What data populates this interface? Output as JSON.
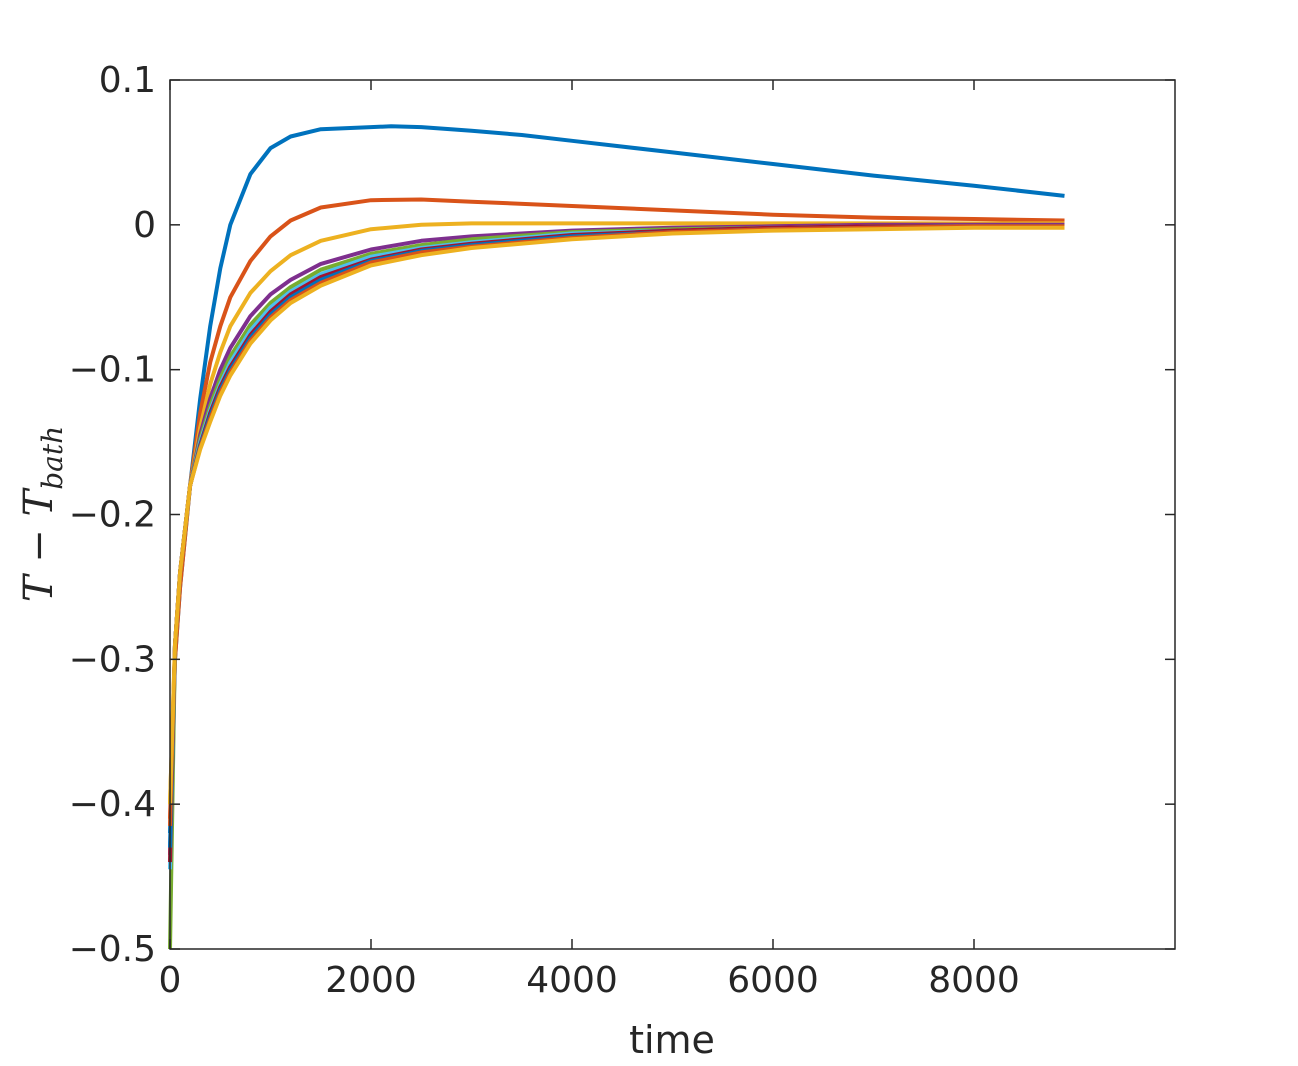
{
  "chart_data": {
    "type": "line",
    "xlabel": "time",
    "ylabel": {
      "main": "T − T",
      "subscript": "bath"
    },
    "xlim": [
      0,
      10000
    ],
    "ylim": [
      -0.5,
      0.1
    ],
    "xticks": [
      0,
      2000,
      4000,
      6000,
      8000
    ],
    "xtick_labels": [
      "0",
      "2000",
      "4000",
      "6000",
      "8000"
    ],
    "yticks": [
      0.1,
      0,
      -0.1,
      -0.2,
      -0.3,
      -0.4,
      -0.5
    ],
    "ytick_labels": [
      "0.1",
      "0",
      "−0.1",
      "−0.2",
      "−0.3",
      "−0.4",
      "−0.5"
    ],
    "grid": false,
    "legend": "none",
    "series": [
      {
        "color": "#0072BD",
        "x": [
          0,
          50,
          100,
          200,
          300,
          400,
          500,
          600,
          800,
          1000,
          1200,
          1500,
          2000,
          2200,
          2500,
          3000,
          3500,
          4000,
          5000,
          6000,
          7000,
          8000,
          8900
        ],
        "y": [
          -0.42,
          -0.3,
          -0.25,
          -0.18,
          -0.12,
          -0.07,
          -0.03,
          0.0,
          0.035,
          0.053,
          0.061,
          0.066,
          0.0675,
          0.068,
          0.0675,
          0.065,
          0.062,
          0.058,
          0.05,
          0.042,
          0.034,
          0.027,
          0.02
        ]
      },
      {
        "color": "#D95319",
        "x": [
          0,
          50,
          100,
          200,
          300,
          400,
          500,
          600,
          800,
          1000,
          1200,
          1500,
          2000,
          2500,
          3000,
          4000,
          5000,
          6000,
          7000,
          8000,
          8900
        ],
        "y": [
          -0.41,
          -0.3,
          -0.25,
          -0.18,
          -0.13,
          -0.095,
          -0.07,
          -0.05,
          -0.025,
          -0.008,
          0.003,
          0.012,
          0.017,
          0.0175,
          0.016,
          0.013,
          0.01,
          0.007,
          0.005,
          0.004,
          0.003
        ]
      },
      {
        "color": "#EDB120",
        "x": [
          0,
          50,
          100,
          200,
          300,
          400,
          500,
          600,
          800,
          1000,
          1200,
          1500,
          2000,
          2500,
          3000,
          4000,
          5000,
          6000,
          7000,
          8000,
          8900
        ],
        "y": [
          -0.4,
          -0.29,
          -0.24,
          -0.18,
          -0.14,
          -0.11,
          -0.088,
          -0.07,
          -0.047,
          -0.032,
          -0.021,
          -0.011,
          -0.003,
          0.0,
          0.001,
          0.001,
          0.001,
          0.001,
          0.001,
          0.001,
          0.001
        ]
      },
      {
        "color": "#7E2F8E",
        "x": [
          0,
          50,
          100,
          200,
          300,
          400,
          500,
          600,
          800,
          1000,
          1200,
          1500,
          2000,
          2500,
          3000,
          4000,
          5000,
          6000,
          7000,
          8000,
          8900
        ],
        "y": [
          -0.435,
          -0.29,
          -0.24,
          -0.18,
          -0.145,
          -0.12,
          -0.1,
          -0.085,
          -0.063,
          -0.048,
          -0.038,
          -0.027,
          -0.017,
          -0.011,
          -0.008,
          -0.004,
          -0.002,
          -0.001,
          0.0,
          0.0,
          0.0
        ]
      },
      {
        "color": "#77AC30",
        "x": [
          0,
          50,
          100,
          200,
          300,
          400,
          500,
          600,
          800,
          1000,
          1200,
          1500,
          2000,
          2500,
          3000,
          4000,
          5000,
          6000,
          7000,
          8000,
          8900
        ],
        "y": [
          -0.5,
          -0.29,
          -0.24,
          -0.18,
          -0.148,
          -0.125,
          -0.106,
          -0.091,
          -0.069,
          -0.054,
          -0.043,
          -0.031,
          -0.02,
          -0.014,
          -0.01,
          -0.005,
          -0.003,
          -0.002,
          -0.001,
          -0.001,
          -0.001
        ]
      },
      {
        "color": "#4DBEEE",
        "x": [
          0,
          50,
          100,
          200,
          300,
          400,
          500,
          600,
          800,
          1000,
          1200,
          1500,
          2000,
          2500,
          3000,
          4000,
          5000,
          6000,
          7000,
          8000,
          8900
        ],
        "y": [
          -0.445,
          -0.29,
          -0.24,
          -0.18,
          -0.15,
          -0.128,
          -0.11,
          -0.095,
          -0.073,
          -0.057,
          -0.046,
          -0.034,
          -0.022,
          -0.016,
          -0.012,
          -0.006,
          -0.004,
          -0.002,
          -0.001,
          -0.001,
          -0.001
        ]
      },
      {
        "color": "#A2142F",
        "x": [
          0,
          50,
          100,
          200,
          300,
          400,
          500,
          600,
          800,
          1000,
          1200,
          1500,
          2000,
          2500,
          3000,
          4000,
          5000,
          6000,
          7000,
          8000,
          8900
        ],
        "y": [
          -0.44,
          -0.29,
          -0.24,
          -0.18,
          -0.152,
          -0.13,
          -0.112,
          -0.098,
          -0.076,
          -0.06,
          -0.048,
          -0.036,
          -0.024,
          -0.017,
          -0.013,
          -0.007,
          -0.004,
          -0.002,
          -0.001,
          -0.001,
          -0.001
        ]
      },
      {
        "color": "#0072BD",
        "x": [
          0,
          50,
          100,
          200,
          300,
          400,
          500,
          600,
          800,
          1000,
          1200,
          1500,
          2000,
          2500,
          3000,
          4000,
          5000,
          6000,
          7000,
          8000,
          8900
        ],
        "y": [
          -0.43,
          -0.29,
          -0.24,
          -0.18,
          -0.153,
          -0.132,
          -0.114,
          -0.1,
          -0.078,
          -0.062,
          -0.05,
          -0.038,
          -0.025,
          -0.018,
          -0.014,
          -0.008,
          -0.005,
          -0.003,
          -0.002,
          -0.001,
          -0.001
        ]
      },
      {
        "color": "#D95319",
        "x": [
          0,
          50,
          100,
          200,
          300,
          400,
          500,
          600,
          800,
          1000,
          1200,
          1500,
          2000,
          2500,
          3000,
          4000,
          5000,
          6000,
          7000,
          8000,
          8900
        ],
        "y": [
          -0.415,
          -0.29,
          -0.24,
          -0.18,
          -0.154,
          -0.134,
          -0.116,
          -0.102,
          -0.08,
          -0.064,
          -0.052,
          -0.04,
          -0.026,
          -0.019,
          -0.015,
          -0.009,
          -0.005,
          -0.003,
          -0.002,
          -0.001,
          -0.001
        ]
      },
      {
        "color": "#EDB120",
        "x": [
          0,
          50,
          100,
          200,
          300,
          400,
          500,
          600,
          800,
          1000,
          1200,
          1500,
          2000,
          2500,
          3000,
          4000,
          5000,
          6000,
          7000,
          8000,
          8900
        ],
        "y": [
          -0.4,
          -0.29,
          -0.24,
          -0.18,
          -0.155,
          -0.136,
          -0.118,
          -0.104,
          -0.082,
          -0.066,
          -0.054,
          -0.042,
          -0.028,
          -0.021,
          -0.016,
          -0.01,
          -0.006,
          -0.004,
          -0.003,
          -0.002,
          -0.002
        ]
      }
    ]
  }
}
